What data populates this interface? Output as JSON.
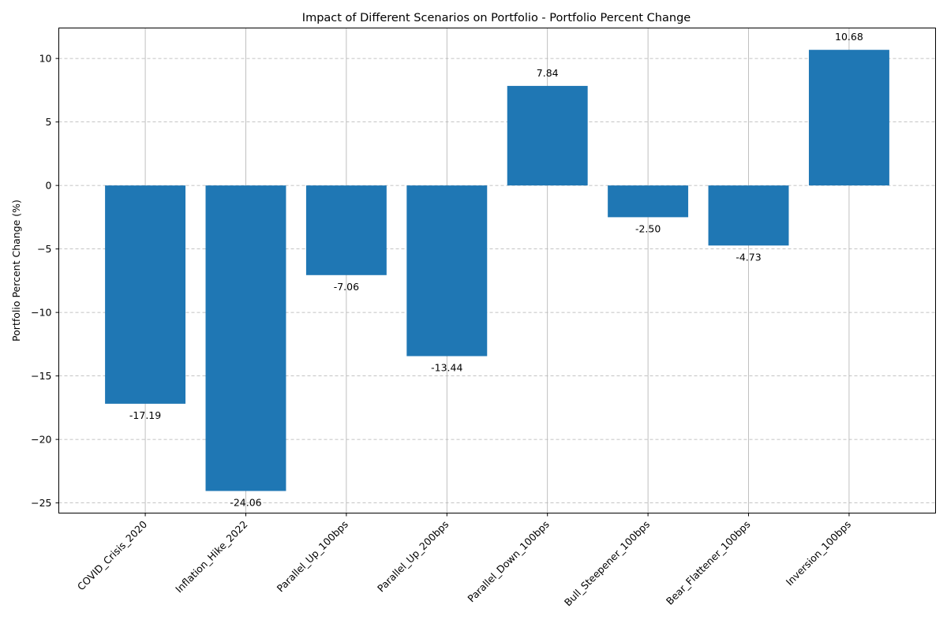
{
  "chart_data": {
    "type": "bar",
    "title": "Impact of Different Scenarios on Portfolio - Portfolio Percent Change",
    "xlabel": "",
    "ylabel": "Portfolio Percent Change (%)",
    "categories": [
      "COVID_Crisis_2020",
      "Inflation_Hike_2022",
      "Parallel_Up_100bps",
      "Parallel_Up_200bps",
      "Parallel_Down_100bps",
      "Bull_Steepener_100bps",
      "Bear_Flattener_100bps",
      "Inversion_100bps"
    ],
    "values": [
      -17.19,
      -24.06,
      -7.06,
      -13.44,
      7.84,
      -2.5,
      -4.73,
      10.68
    ],
    "value_labels": [
      "-17.19",
      "-24.06",
      "-7.06",
      "-13.44",
      "7.84",
      "-2.50",
      "-4.73",
      "10.68"
    ],
    "ylim": [
      -25.8,
      12.4
    ],
    "yticks": [
      10,
      5,
      0,
      -5,
      -10,
      -15,
      -20,
      -25
    ],
    "ytick_labels": [
      "10",
      "5",
      "0",
      "−5",
      "−10",
      "−15",
      "−20",
      "−25"
    ],
    "grid": {
      "x": "solid",
      "y": "dashed"
    },
    "colors": {
      "bar": "#1f77b4",
      "grid": "#b0b0b0",
      "axis": "#000000"
    }
  }
}
